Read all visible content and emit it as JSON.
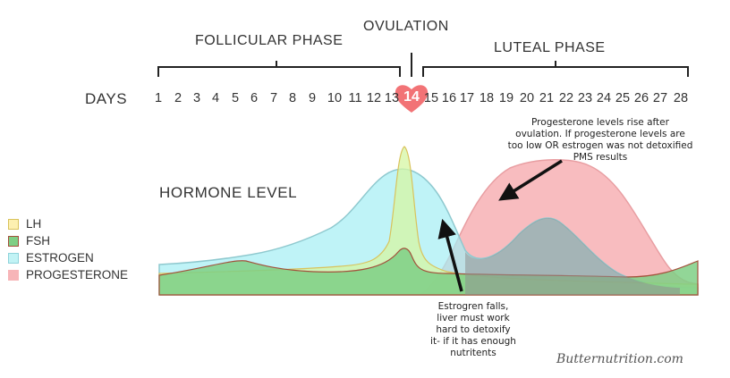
{
  "phases": {
    "follicular": "FOLLICULAR PHASE",
    "ovulation": "OVULATION",
    "luteal": "LUTEAL PHASE"
  },
  "days_label": "DAYS",
  "days": [
    "1",
    "2",
    "3",
    "4",
    "5",
    "6",
    "7",
    "8",
    "9",
    "10",
    "11",
    "12",
    "13",
    "14",
    "15",
    "16",
    "17",
    "18",
    "19",
    "20",
    "21",
    "22",
    "23",
    "24",
    "25",
    "26",
    "27",
    "28"
  ],
  "highlight_day": "14",
  "hormone_level_label": "HORMONE LEVEL",
  "legend": [
    {
      "label": "LH",
      "fill": "#fdf0b0",
      "stroke": "#d9c35c"
    },
    {
      "label": "FSH",
      "fill": "#7fcf85",
      "stroke": "#a3503b"
    },
    {
      "label": "ESTROGEN",
      "fill": "#c2f3f5",
      "stroke": "#8fd3db"
    },
    {
      "label": "PROGESTERONE",
      "fill": "#f7b5b8",
      "stroke": "#f7b5b8"
    }
  ],
  "annotations": {
    "progesterone": [
      "Progesterone levels rise after",
      "ovulation. If progesterone levels are",
      "too low OR estrogen was not detoxified",
      "PMS results"
    ],
    "estrogen": [
      "Estrogren falls,",
      "liver must work",
      "hard to detoxify",
      "it- if it has enough",
      "nutritents"
    ]
  },
  "watermark": "Butternutrition.com",
  "colors": {
    "heart": "#f05a5e",
    "heart_text": "#d6222a",
    "bracket": "#222222",
    "arrow": "#111111"
  }
}
